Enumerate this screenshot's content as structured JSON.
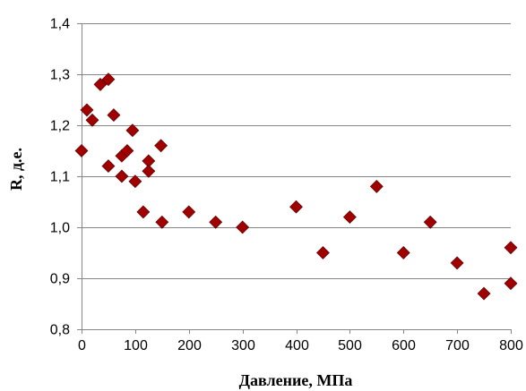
{
  "chart_data": {
    "type": "scatter",
    "xlabel": "Давление, МПа",
    "ylabel": "R, д.е.",
    "xlim": [
      0,
      800
    ],
    "ylim": [
      0.8,
      1.4
    ],
    "x_ticks": [
      0,
      100,
      200,
      300,
      400,
      500,
      600,
      700,
      800
    ],
    "x_tick_labels": [
      "0",
      "100",
      "200",
      "300",
      "400",
      "500",
      "600",
      "700",
      "800"
    ],
    "y_ticks": [
      0.8,
      0.9,
      1.0,
      1.1,
      1.2,
      1.3,
      1.4
    ],
    "y_tick_labels": [
      "0,8",
      "0,9",
      "1,0",
      "1,1",
      "1,2",
      "1,3",
      "1,4"
    ],
    "grid": "horizontal",
    "legend": "none",
    "marker_shape": "diamond",
    "marker_color": "#a00000",
    "points": [
      {
        "x": 0,
        "y": 1.15
      },
      {
        "x": 10,
        "y": 1.23
      },
      {
        "x": 20,
        "y": 1.21
      },
      {
        "x": 35,
        "y": 1.28
      },
      {
        "x": 50,
        "y": 1.29
      },
      {
        "x": 50,
        "y": 1.12
      },
      {
        "x": 60,
        "y": 1.22
      },
      {
        "x": 75,
        "y": 1.1
      },
      {
        "x": 75,
        "y": 1.14
      },
      {
        "x": 85,
        "y": 1.15
      },
      {
        "x": 95,
        "y": 1.19
      },
      {
        "x": 100,
        "y": 1.09
      },
      {
        "x": 115,
        "y": 1.03
      },
      {
        "x": 125,
        "y": 1.13
      },
      {
        "x": 125,
        "y": 1.11
      },
      {
        "x": 148,
        "y": 1.16
      },
      {
        "x": 150,
        "y": 1.01
      },
      {
        "x": 200,
        "y": 1.03
      },
      {
        "x": 250,
        "y": 1.01
      },
      {
        "x": 300,
        "y": 1.0
      },
      {
        "x": 400,
        "y": 1.04
      },
      {
        "x": 450,
        "y": 0.95
      },
      {
        "x": 500,
        "y": 1.02
      },
      {
        "x": 550,
        "y": 1.08
      },
      {
        "x": 600,
        "y": 0.95
      },
      {
        "x": 650,
        "y": 1.01
      },
      {
        "x": 700,
        "y": 0.93
      },
      {
        "x": 750,
        "y": 0.87
      },
      {
        "x": 800,
        "y": 0.96
      },
      {
        "x": 800,
        "y": 0.89
      }
    ]
  }
}
